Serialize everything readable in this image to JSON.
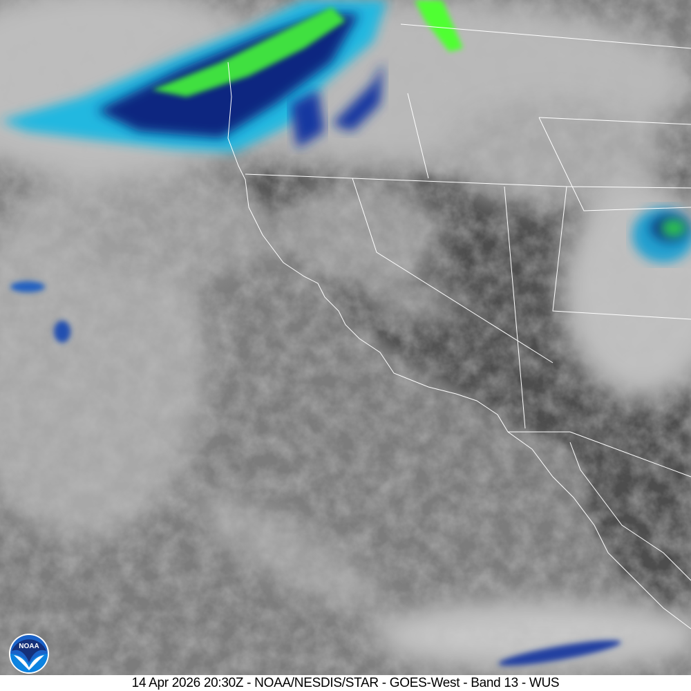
{
  "caption": "14 Apr 2026 20:30Z - NOAA/NESDIS/STAR - GOES-West - Band 13 - WUS",
  "logo": {
    "text": "NOAA",
    "icon": "noaa-logo-icon"
  },
  "colors": {
    "ocean": "#7a7a7a",
    "land_dark": "#4a4a4a",
    "cloud_cold": "#e8e8e8",
    "storm_blue": "#1030a0",
    "storm_cyan": "#20c0e0",
    "storm_green": "#40ff20",
    "borders": "#ffffff"
  }
}
